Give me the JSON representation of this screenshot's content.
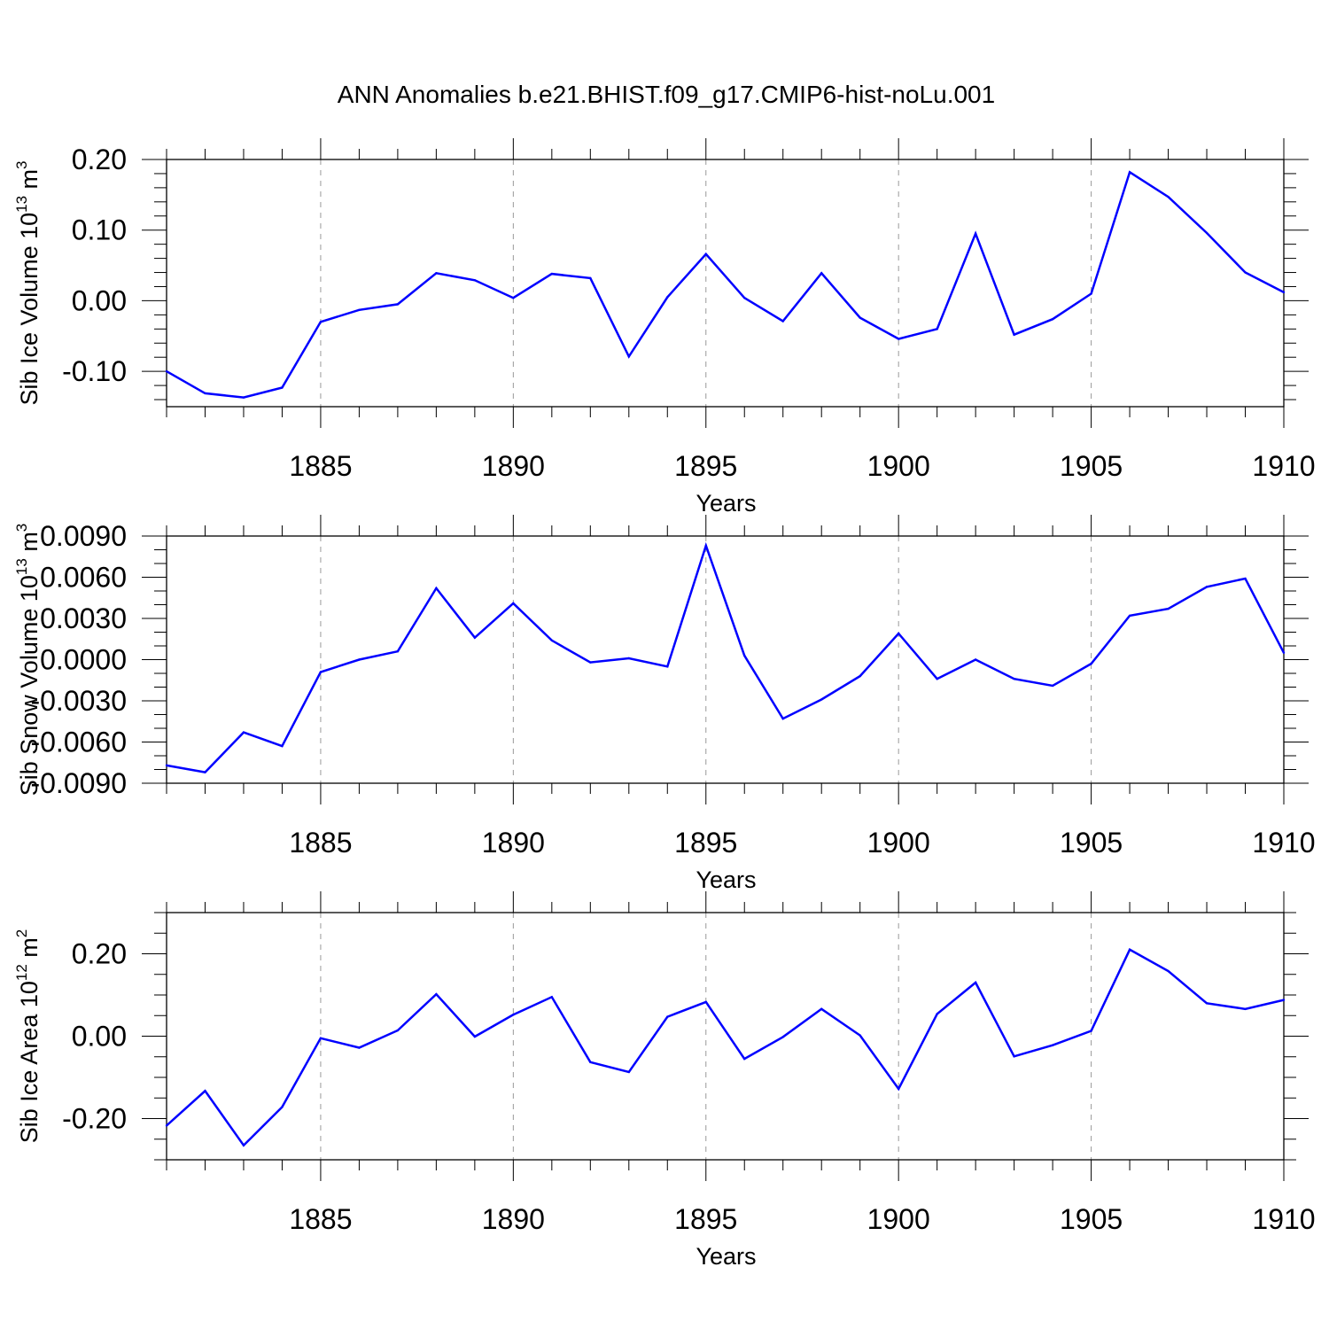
{
  "title": "ANN Anomalies b.e21.BHIST.f09_g17.CMIP6-hist-noLu.001",
  "colors": {
    "line": "#0000ff",
    "axis": "#000000",
    "grid": "#999999"
  },
  "chart_data": [
    {
      "type": "line",
      "name": "sib-ice-volume",
      "ylabel": "Sib Ice Volume 10",
      "ylabel_exponent": "13",
      "ylabel_unit": " m",
      "ylabel_unit_exponent": "3",
      "xlabel": "Years",
      "xlim": [
        1881,
        1910
      ],
      "ylim": [
        -0.15,
        0.2
      ],
      "yticks": [
        -0.1,
        0.0,
        0.1,
        0.2
      ],
      "ytick_labels": [
        "-0.10",
        "0.00",
        "0.10",
        "0.20"
      ],
      "yminor_step": 0.02,
      "xticks": [
        1885,
        1890,
        1895,
        1900,
        1905,
        1910
      ],
      "xtick_labels": [
        "1885",
        "1890",
        "1895",
        "1900",
        "1905",
        "1910"
      ],
      "grid": "vertical dashed at major x ticks",
      "x": [
        1881,
        1882,
        1883,
        1884,
        1885,
        1886,
        1887,
        1888,
        1889,
        1890,
        1891,
        1892,
        1893,
        1894,
        1895,
        1896,
        1897,
        1898,
        1899,
        1900,
        1901,
        1902,
        1903,
        1904,
        1905,
        1906,
        1907,
        1908,
        1909,
        1910
      ],
      "values": [
        -0.1,
        -0.131,
        -0.137,
        -0.123,
        -0.03,
        -0.013,
        -0.005,
        0.039,
        0.029,
        0.004,
        0.038,
        0.032,
        -0.079,
        0.005,
        0.066,
        0.004,
        -0.029,
        0.039,
        -0.024,
        -0.054,
        -0.04,
        0.095,
        -0.048,
        -0.026,
        0.01,
        0.182,
        0.147,
        0.096,
        0.04,
        0.012
      ]
    },
    {
      "type": "line",
      "name": "sib-snow-volume",
      "ylabel": "Sib Snow Volume 10",
      "ylabel_exponent": "13",
      "ylabel_unit": " m",
      "ylabel_unit_exponent": "3",
      "xlabel": "Years",
      "xlim": [
        1881,
        1910
      ],
      "ylim": [
        -0.009,
        0.009
      ],
      "yticks": [
        -0.009,
        -0.006,
        -0.003,
        0.0,
        0.003,
        0.006,
        0.009
      ],
      "ytick_labels": [
        "-0.0090",
        "-0.0060",
        "-0.0030",
        "0.0000",
        "0.0030",
        "0.0060",
        "0.0090"
      ],
      "yminor_step": 0.001,
      "xticks": [
        1885,
        1890,
        1895,
        1900,
        1905,
        1910
      ],
      "xtick_labels": [
        "1885",
        "1890",
        "1895",
        "1900",
        "1905",
        "1910"
      ],
      "grid": "vertical dashed at major x ticks",
      "x": [
        1881,
        1882,
        1883,
        1884,
        1885,
        1886,
        1887,
        1888,
        1889,
        1890,
        1891,
        1892,
        1893,
        1894,
        1895,
        1896,
        1897,
        1898,
        1899,
        1900,
        1901,
        1902,
        1903,
        1904,
        1905,
        1906,
        1907,
        1908,
        1909,
        1910
      ],
      "values": [
        -0.0077,
        -0.0082,
        -0.0053,
        -0.0063,
        -0.0009,
        0.0,
        0.0006,
        0.0052,
        0.0016,
        0.0041,
        0.0014,
        -0.0002,
        0.0001,
        -0.0005,
        0.0083,
        0.0003,
        -0.0043,
        -0.0029,
        -0.0012,
        0.0019,
        -0.0014,
        0.0,
        -0.0014,
        -0.0019,
        -0.0003,
        0.0032,
        0.0037,
        0.0053,
        0.0059,
        0.0005
      ]
    },
    {
      "type": "line",
      "name": "sib-ice-area",
      "ylabel": "Sib Ice Area 10",
      "ylabel_exponent": "12",
      "ylabel_unit": " m",
      "ylabel_unit_exponent": "2",
      "xlabel": "Years",
      "xlim": [
        1881,
        1910
      ],
      "ylim": [
        -0.3,
        0.3
      ],
      "yticks": [
        -0.2,
        0.0,
        0.2
      ],
      "ytick_labels": [
        "-0.20",
        "0.00",
        "0.20"
      ],
      "yminor_step": 0.05,
      "xticks": [
        1885,
        1890,
        1895,
        1900,
        1905,
        1910
      ],
      "xtick_labels": [
        "1885",
        "1890",
        "1895",
        "1900",
        "1905",
        "1910"
      ],
      "grid": "vertical dashed at major x ticks",
      "x": [
        1881,
        1882,
        1883,
        1884,
        1885,
        1886,
        1887,
        1888,
        1889,
        1890,
        1891,
        1892,
        1893,
        1894,
        1895,
        1896,
        1897,
        1898,
        1899,
        1900,
        1901,
        1902,
        1903,
        1904,
        1905,
        1906,
        1907,
        1908,
        1909,
        1910
      ],
      "values": [
        -0.217,
        -0.133,
        -0.265,
        -0.172,
        -0.005,
        -0.028,
        0.014,
        0.102,
        -0.001,
        0.052,
        0.095,
        -0.063,
        -0.087,
        0.047,
        0.083,
        -0.055,
        -0.002,
        0.066,
        0.002,
        -0.128,
        0.054,
        0.13,
        -0.049,
        -0.022,
        0.013,
        0.21,
        0.158,
        0.08,
        0.066,
        0.088
      ]
    }
  ]
}
